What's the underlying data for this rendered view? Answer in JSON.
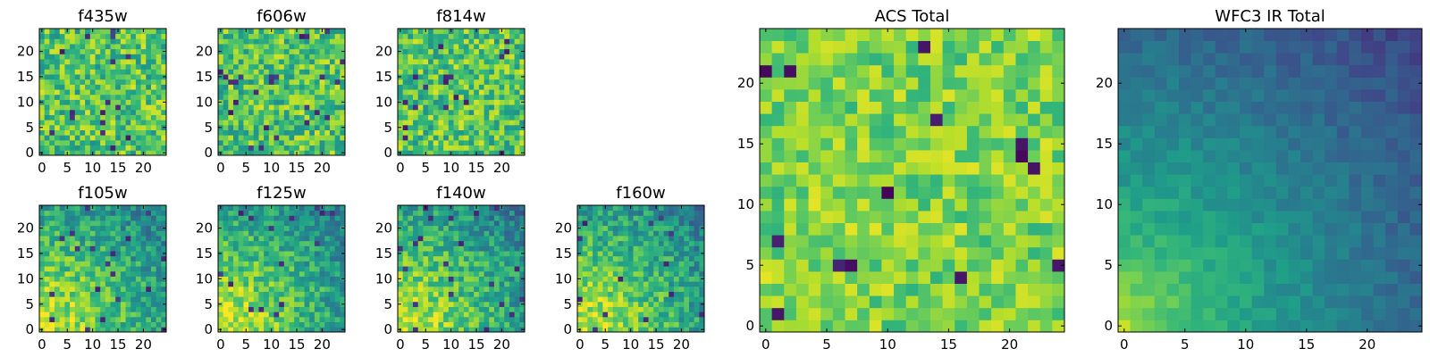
{
  "chart_data": [
    {
      "type": "heatmap",
      "title": "f435w",
      "nx": 25,
      "ny": 25,
      "xticks": [
        "0",
        "5",
        "10",
        "15",
        "20"
      ],
      "yticks": [
        "0",
        "5",
        "10",
        "15",
        "20"
      ],
      "colormap": "viridis",
      "pattern": "noise",
      "seed": 11
    },
    {
      "type": "heatmap",
      "title": "f606w",
      "nx": 25,
      "ny": 25,
      "xticks": [
        "0",
        "5",
        "10",
        "15",
        "20"
      ],
      "yticks": [
        "0",
        "5",
        "10",
        "15",
        "20"
      ],
      "colormap": "viridis",
      "pattern": "noise",
      "seed": 23
    },
    {
      "type": "heatmap",
      "title": "f814w",
      "nx": 25,
      "ny": 25,
      "xticks": [
        "0",
        "5",
        "10",
        "15",
        "20"
      ],
      "yticks": [
        "0",
        "5",
        "10",
        "15",
        "20"
      ],
      "colormap": "viridis",
      "pattern": "noise",
      "seed": 37
    },
    {
      "type": "heatmap",
      "title": "f105w",
      "nx": 25,
      "ny": 25,
      "xticks": [
        "0",
        "5",
        "10",
        "15",
        "20"
      ],
      "yticks": [
        "0",
        "5",
        "10",
        "15",
        "20"
      ],
      "colormap": "viridis",
      "pattern": "gradient",
      "seed": 41
    },
    {
      "type": "heatmap",
      "title": "f125w",
      "nx": 25,
      "ny": 25,
      "xticks": [
        "0",
        "5",
        "10",
        "15",
        "20"
      ],
      "yticks": [
        "0",
        "5",
        "10",
        "15",
        "20"
      ],
      "colormap": "viridis",
      "pattern": "gradient",
      "seed": 53
    },
    {
      "type": "heatmap",
      "title": "f140w",
      "nx": 25,
      "ny": 25,
      "xticks": [
        "0",
        "5",
        "10",
        "15",
        "20"
      ],
      "yticks": [
        "0",
        "5",
        "10",
        "15",
        "20"
      ],
      "colormap": "viridis",
      "pattern": "gradient",
      "seed": 67
    },
    {
      "type": "heatmap",
      "title": "f160w",
      "nx": 25,
      "ny": 25,
      "xticks": [
        "0",
        "5",
        "10",
        "15",
        "20"
      ],
      "yticks": [
        "0",
        "5",
        "10",
        "15",
        "20"
      ],
      "colormap": "viridis",
      "pattern": "gradient",
      "seed": 79
    },
    {
      "type": "heatmap",
      "title": "ACS Total",
      "nx": 25,
      "ny": 25,
      "xticks": [
        "0",
        "5",
        "10",
        "15",
        "20"
      ],
      "yticks": [
        "0",
        "5",
        "10",
        "15",
        "20"
      ],
      "colormap": "viridis",
      "pattern": "noise-bright",
      "seed": 89
    },
    {
      "type": "heatmap",
      "title": "WFC3 IR Total",
      "nx": 25,
      "ny": 25,
      "xticks": [
        "0",
        "5",
        "10",
        "15",
        "20"
      ],
      "yticks": [
        "0",
        "5",
        "10",
        "15",
        "20"
      ],
      "colormap": "viridis",
      "pattern": "smooth-gradient",
      "seed": 97
    }
  ]
}
